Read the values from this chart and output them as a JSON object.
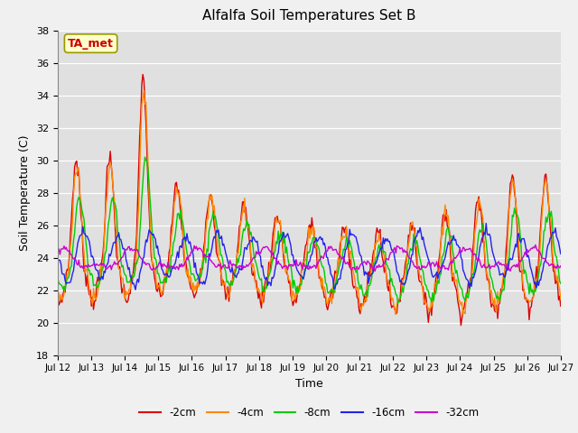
{
  "title": "Alfalfa Soil Temperatures Set B",
  "xlabel": "Time",
  "ylabel": "Soil Temperature (C)",
  "ylim": [
    18,
    38
  ],
  "yticks": [
    18,
    20,
    22,
    24,
    26,
    28,
    30,
    32,
    34,
    36,
    38
  ],
  "plot_bg_color": "#e0e0e0",
  "fig_bg_color": "#f0f0f0",
  "legend_entries": [
    "-2cm",
    "-4cm",
    "-8cm",
    "-16cm",
    "-32cm"
  ],
  "line_colors": [
    "#dd0000",
    "#ff8800",
    "#00cc00",
    "#2222ee",
    "#cc00cc"
  ],
  "annotation_text": "TA_met",
  "annotation_bg": "#ffffcc",
  "annotation_border": "#999900",
  "annotation_text_color": "#cc0000",
  "x_start": 12.0,
  "x_end": 27.0,
  "xtick_positions": [
    12,
    13,
    14,
    15,
    16,
    17,
    18,
    19,
    20,
    21,
    22,
    23,
    24,
    25,
    26,
    27
  ],
  "xtick_labels": [
    "Jul 12",
    "Jul 13",
    "Jul 14",
    "Jul 15",
    "Jul 16",
    "Jul 17",
    "Jul 18",
    "Jul 19",
    "Jul 20",
    "Jul 21",
    "Jul 22",
    "Jul 23",
    "Jul 24",
    "Jul 25",
    "Jul 26",
    "Jul 27"
  ]
}
